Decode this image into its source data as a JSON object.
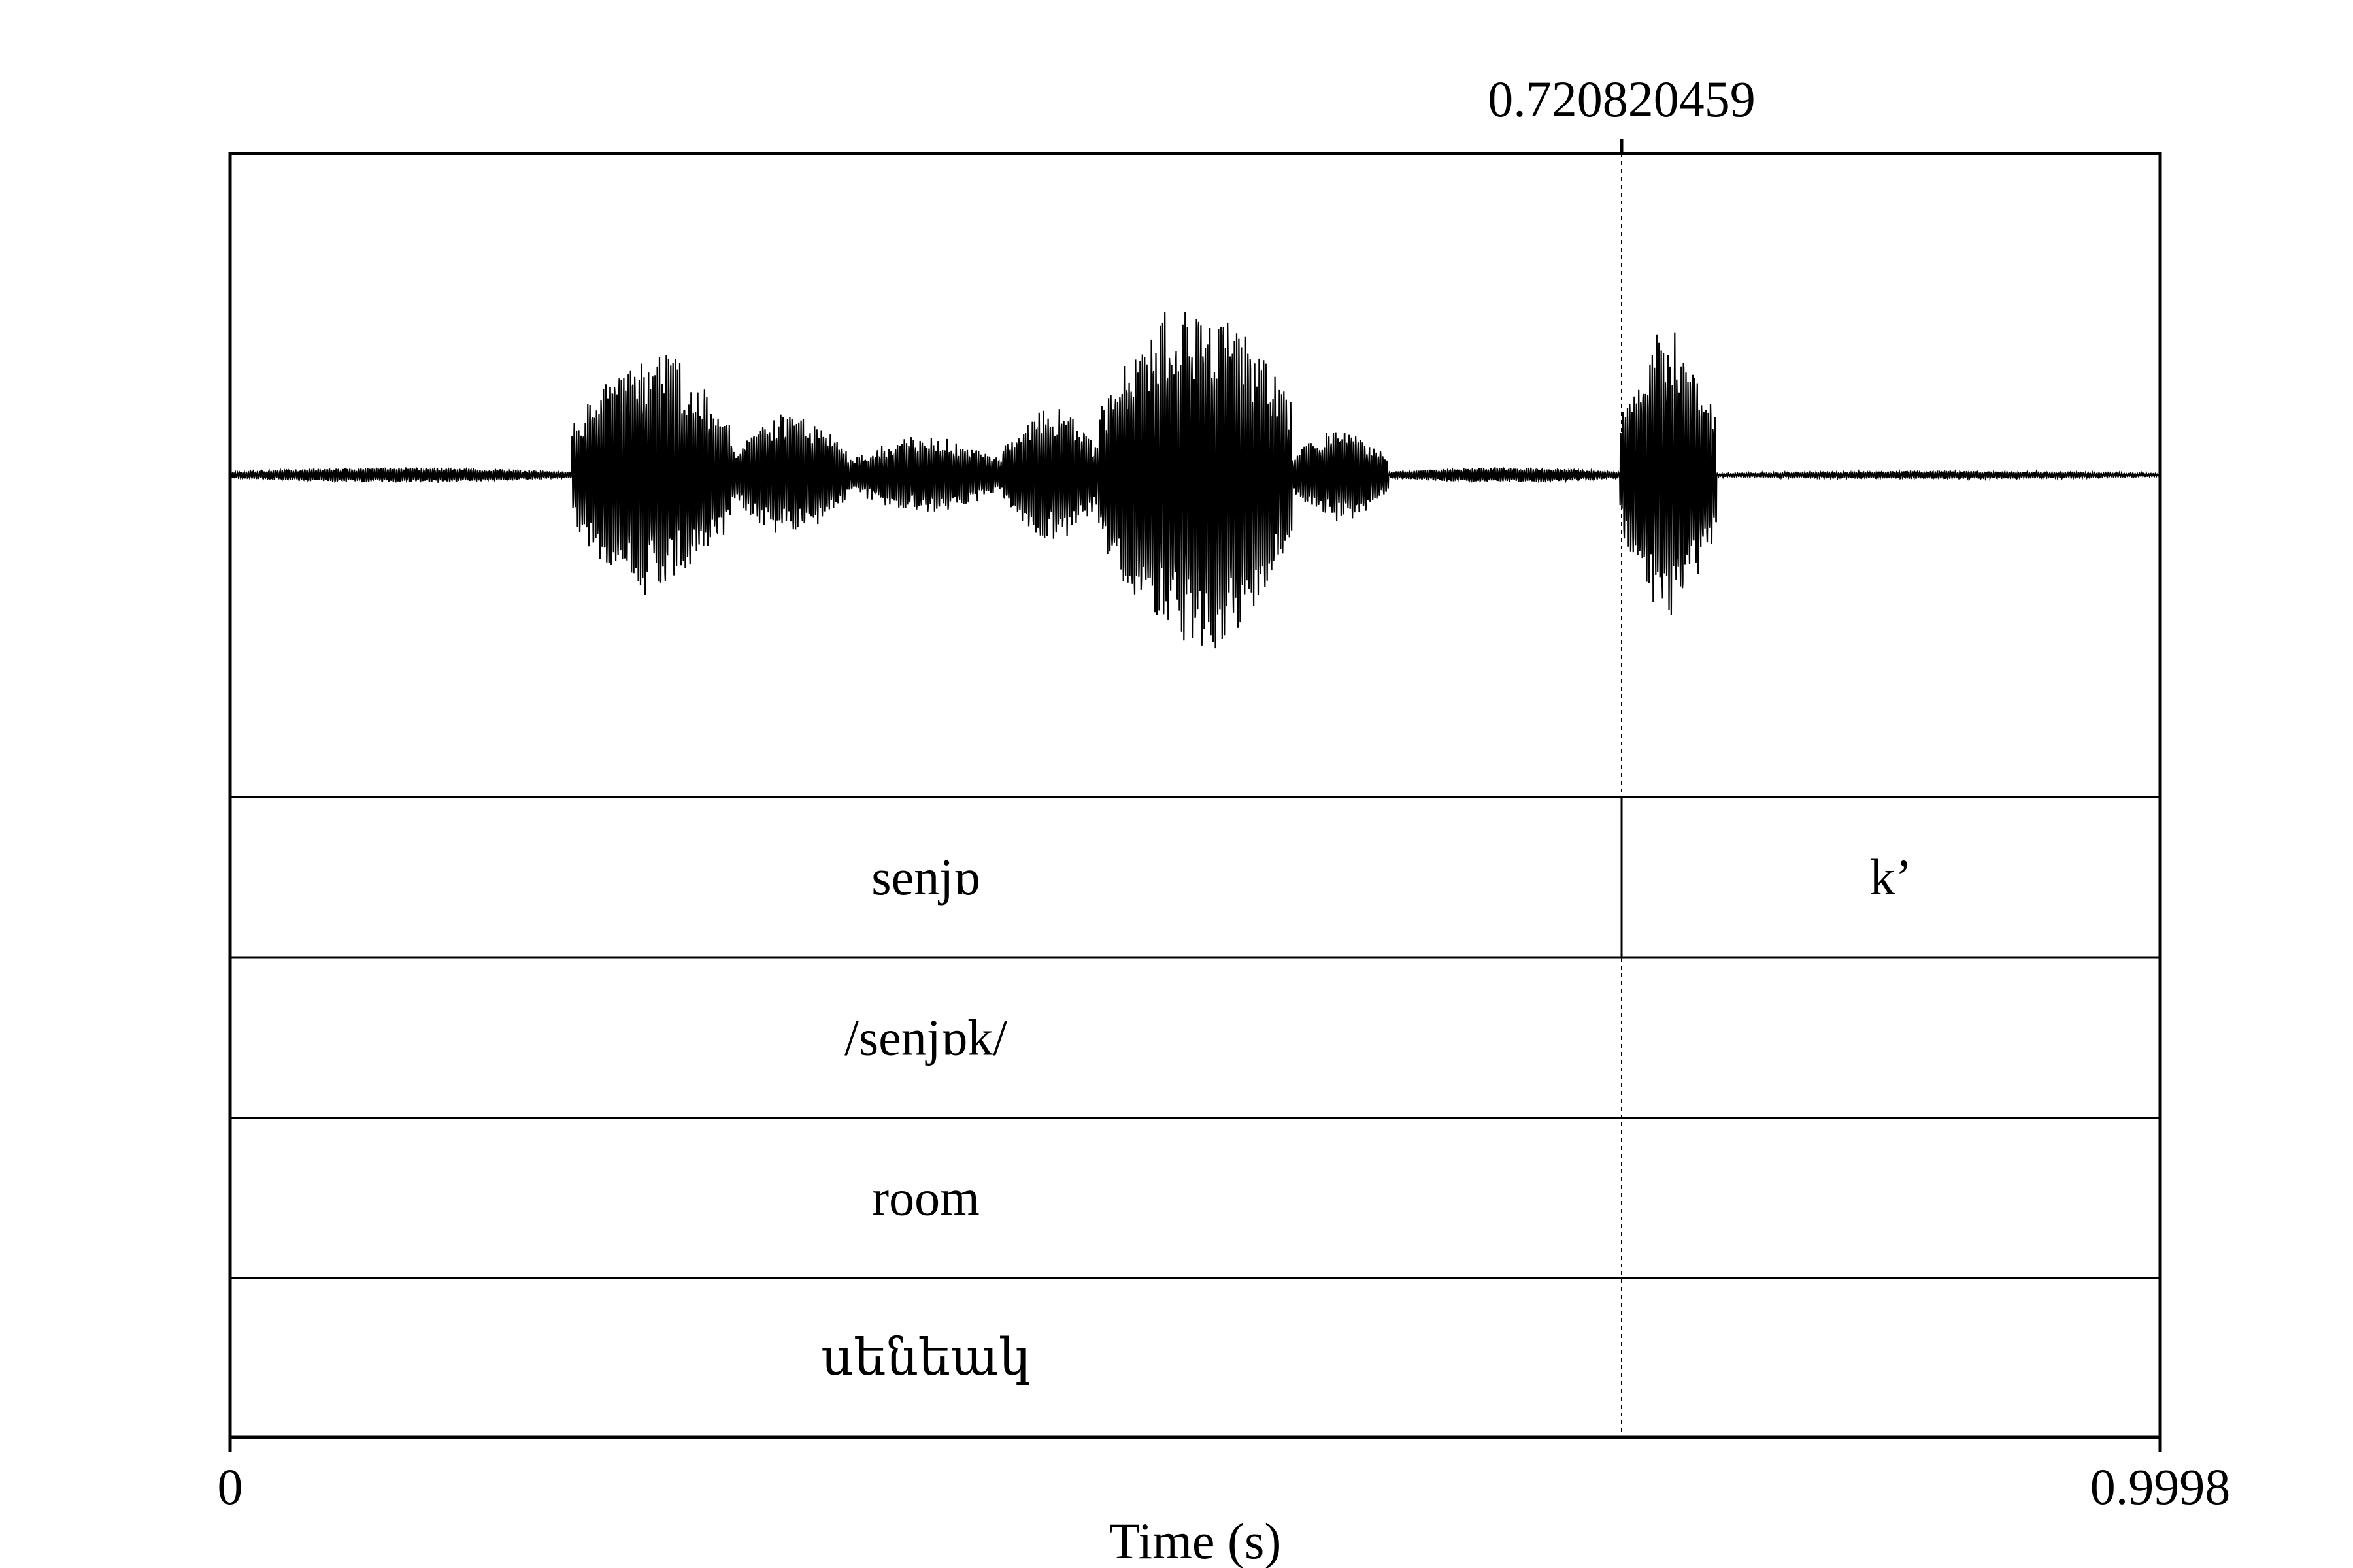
{
  "chart_data": {
    "type": "waveform",
    "xlabel": "Time (s)",
    "xlim": [
      0,
      0.9998
    ],
    "tick_labels": {
      "start": "0",
      "end": "0.9998"
    },
    "cursor": {
      "time": 0.720820459,
      "label": "0.720820459"
    },
    "waveform": {
      "description_segments": [
        {
          "start": 0.0,
          "end": 0.177,
          "amplitude": 0.01
        },
        {
          "start": 0.177,
          "end": 0.26,
          "amplitude": 0.16
        },
        {
          "start": 0.26,
          "end": 0.32,
          "amplitude": 0.08
        },
        {
          "start": 0.32,
          "end": 0.4,
          "amplitude": 0.05
        },
        {
          "start": 0.4,
          "end": 0.45,
          "amplitude": 0.09
        },
        {
          "start": 0.45,
          "end": 0.55,
          "amplitude": 0.23
        },
        {
          "start": 0.55,
          "end": 0.6,
          "amplitude": 0.06
        },
        {
          "start": 0.6,
          "end": 0.72,
          "amplitude": 0.01
        },
        {
          "start": 0.72,
          "end": 0.77,
          "amplitude": 0.19
        },
        {
          "start": 0.77,
          "end": 0.9998,
          "amplitude": 0.005
        }
      ]
    },
    "tiers": [
      {
        "name": "phones",
        "intervals": [
          {
            "start": 0,
            "end": 0.720820459,
            "text": "senjɒ"
          },
          {
            "start": 0.720820459,
            "end": 0.9998,
            "text": "k’"
          }
        ]
      },
      {
        "name": "phonemic",
        "intervals": [
          {
            "start": 0,
            "end": 0.9998,
            "text": "/senjɒk/"
          }
        ]
      },
      {
        "name": "gloss",
        "intervals": [
          {
            "start": 0,
            "end": 0.9998,
            "text": "room"
          }
        ]
      },
      {
        "name": "orthography",
        "intervals": [
          {
            "start": 0,
            "end": 0.9998,
            "text": "սենեակ"
          }
        ]
      }
    ],
    "colors": {
      "ink": "#000000",
      "background": "#ffffff"
    }
  }
}
